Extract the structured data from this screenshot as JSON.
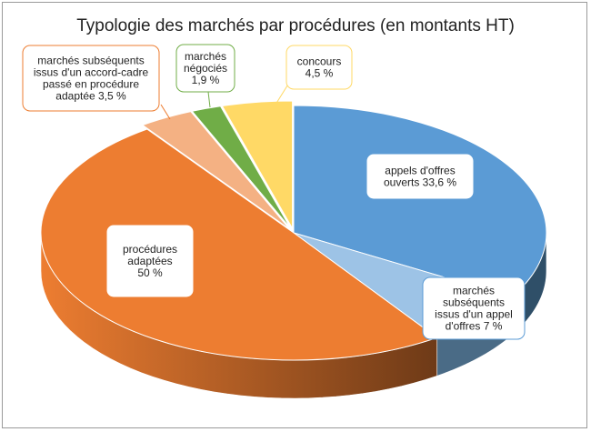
{
  "chart_data": {
    "type": "pie",
    "style": "3d-exploded",
    "title": "Typologie des marchés par procédures (en montants HT)",
    "slices": [
      {
        "label": "appels d'offres ouverts",
        "value": 33.6,
        "color": "#5b9bd5",
        "callout": [
          "appels d'offres",
          "ouverts 33,6 %"
        ]
      },
      {
        "label": "marchés subséquents issus d'un appel d'offres",
        "value": 7,
        "color": "#9dc3e6",
        "callout": [
          "marchés",
          "subséquents",
          "issus d'un appel",
          "d'offres  7 %"
        ]
      },
      {
        "label": "procédures adaptées",
        "value": 50,
        "color": "#ed7d31",
        "callout": [
          "procédures",
          "adaptées",
          "50 %"
        ]
      },
      {
        "label": "marchés subséquents issus d'un accord-cadre passé en procédure adaptée",
        "value": 3.5,
        "color": "#f4b183",
        "callout": [
          "marchés subséquents",
          "issus d'un accord-cadre",
          "passé en procédure",
          "adaptée 3,5 %"
        ]
      },
      {
        "label": "marchés négociés",
        "value": 1.9,
        "color": "#70ad47",
        "callout": [
          "marchés",
          "négociés",
          "1,9 %"
        ]
      },
      {
        "label": "concours",
        "value": 4.5,
        "color": "#ffd966",
        "callout": [
          "concours",
          "4,5 %"
        ]
      }
    ]
  }
}
